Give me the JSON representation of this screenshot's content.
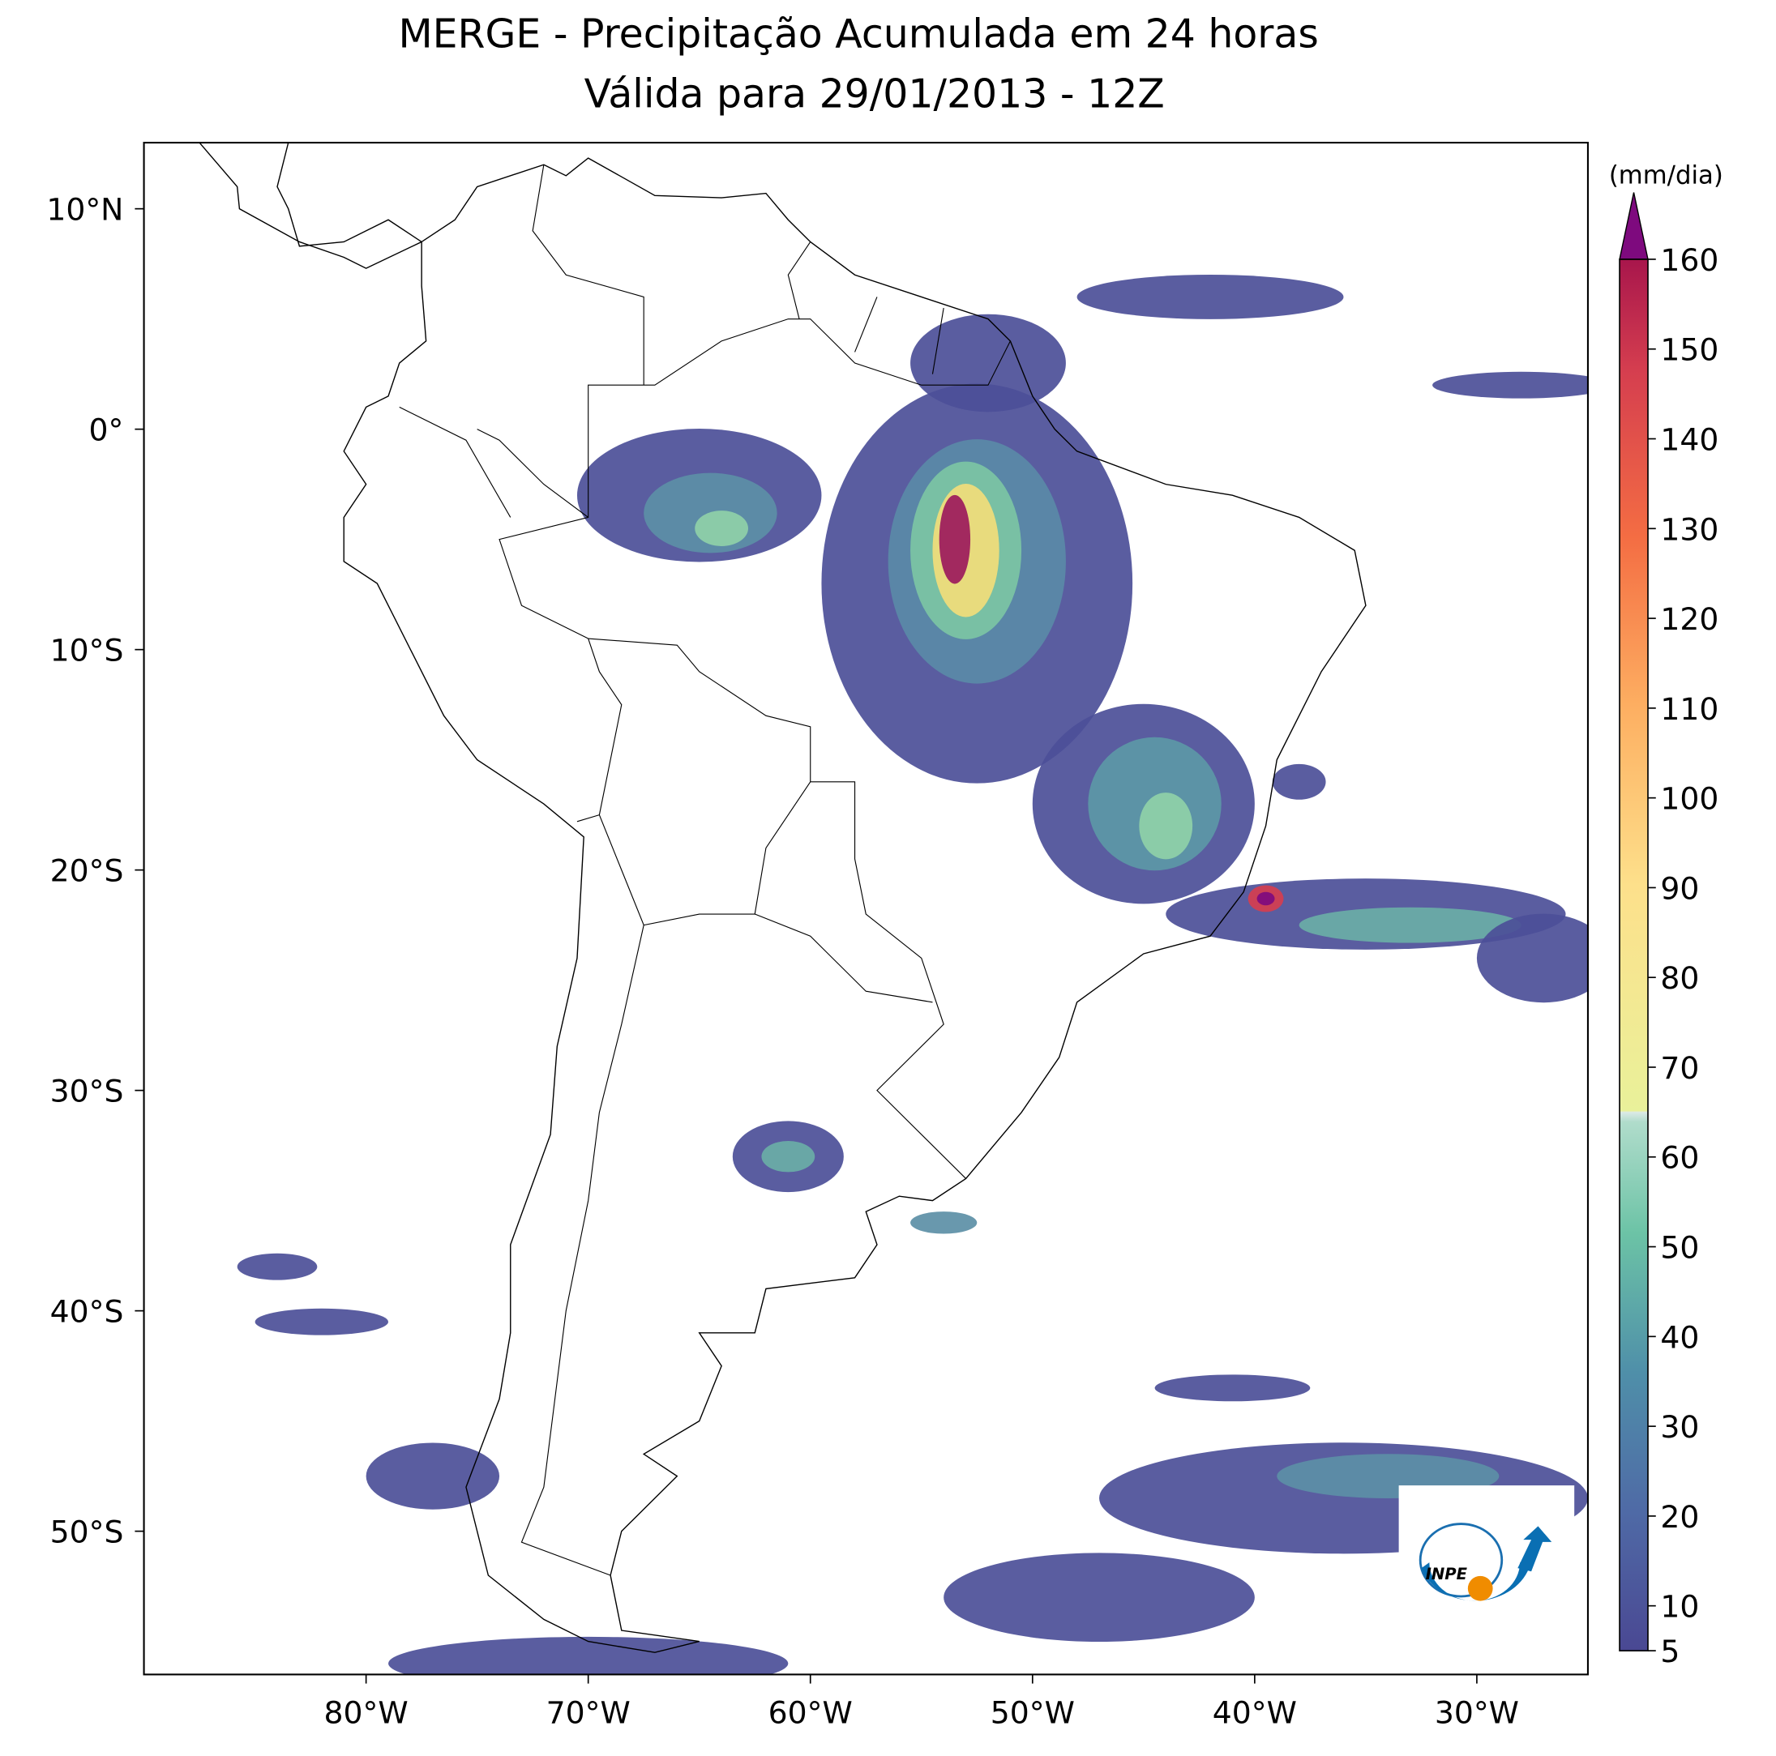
{
  "title": [
    "MERGE - Precipitação Acumulada em 24 horas",
    "Válida para 29/01/2013 - 12Z"
  ],
  "map": {
    "xlim": [
      -90,
      -25
    ],
    "ylim": [
      -56.5,
      13
    ],
    "xticks": [
      {
        "value": -80,
        "label": "80°W"
      },
      {
        "value": -70,
        "label": "70°W"
      },
      {
        "value": -60,
        "label": "60°W"
      },
      {
        "value": -50,
        "label": "50°W"
      },
      {
        "value": -40,
        "label": "40°W"
      },
      {
        "value": -30,
        "label": "30°W"
      }
    ],
    "yticks": [
      {
        "value": 10,
        "label": "10°N"
      },
      {
        "value": 0,
        "label": "0°"
      },
      {
        "value": -10,
        "label": "10°S"
      },
      {
        "value": -20,
        "label": "20°S"
      },
      {
        "value": -30,
        "label": "30°S"
      },
      {
        "value": -40,
        "label": "40°S"
      },
      {
        "value": -50,
        "label": "50°S"
      }
    ]
  },
  "colorbar": {
    "label": "(mm/dia)",
    "lim": [
      5,
      160
    ],
    "ticks": [
      5,
      10,
      20,
      30,
      40,
      50,
      60,
      70,
      80,
      90,
      100,
      110,
      120,
      130,
      140,
      150,
      160
    ]
  },
  "logo": "INPE"
}
